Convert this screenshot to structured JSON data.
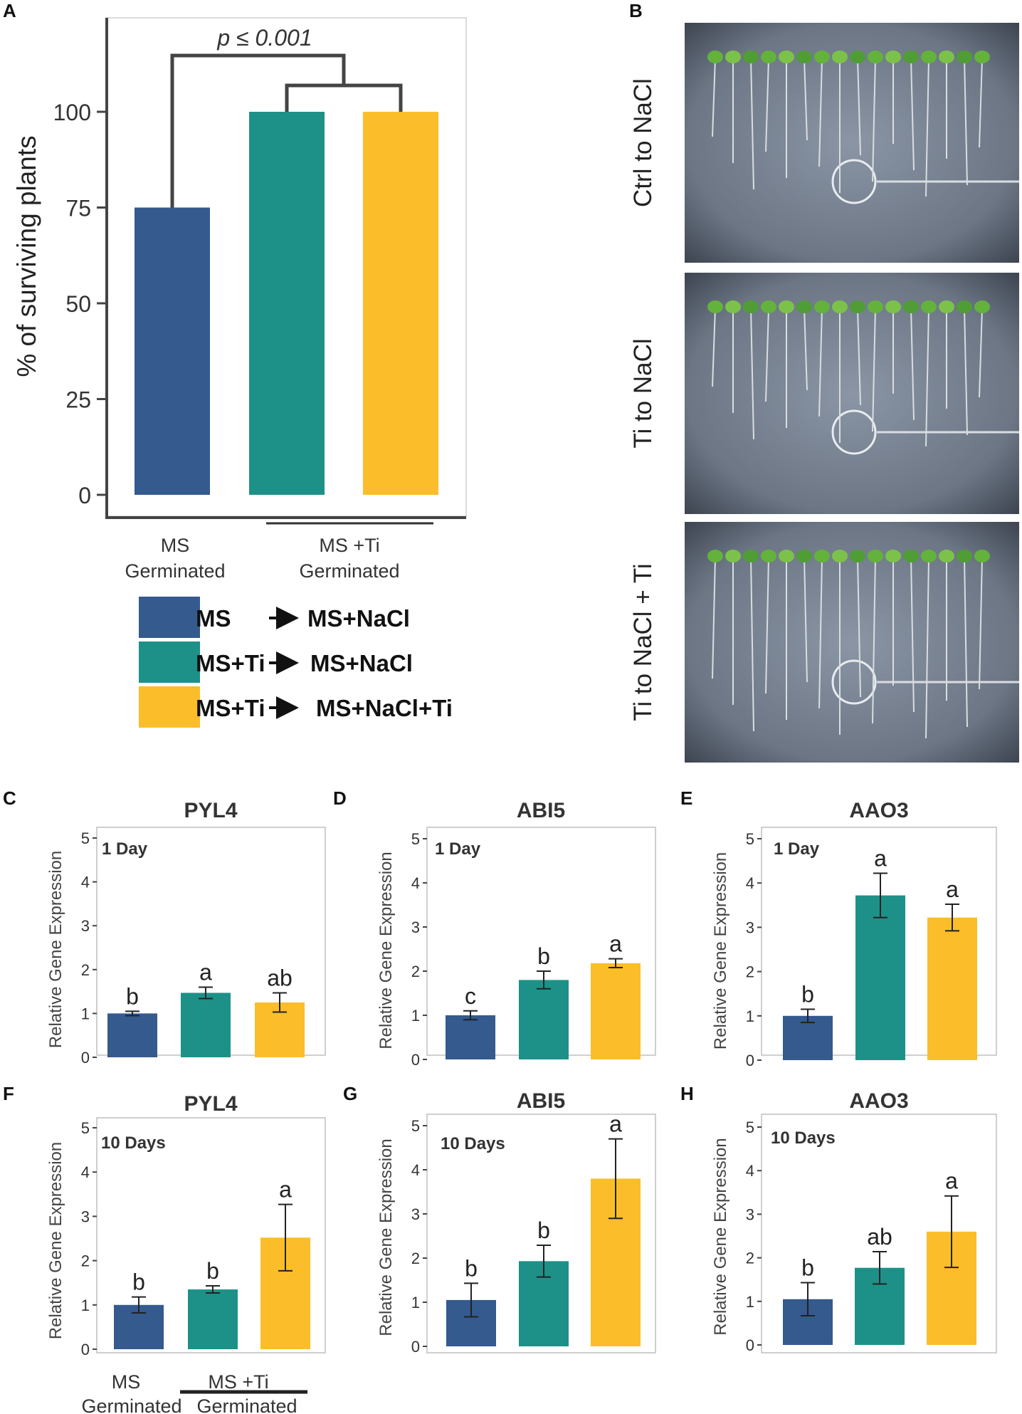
{
  "colors": {
    "ms": "#345a8e",
    "ti": "#1d9187",
    "tiNacl": "#fbbd2a"
  },
  "panelA": {
    "letter": "A",
    "chart_data": {
      "type": "bar",
      "categories": [
        "MS → MS+NaCl",
        "MS+Ti → MS+NaCl",
        "MS+Ti → MS+NaCl+Ti"
      ],
      "values": [
        75,
        100,
        100
      ],
      "ylabel": "% of surviving plants",
      "yticks": [
        0,
        25,
        50,
        75,
        100
      ],
      "ylim": [
        0,
        122
      ],
      "annotation": "p ≤ 0.001",
      "groups": [
        {
          "line1": "MS",
          "line2": "Germinated"
        },
        {
          "line1": "MS +Ti",
          "line2": "Germinated"
        }
      ]
    }
  },
  "legend": [
    {
      "from": "MS",
      "to": "MS+NaCl",
      "color": "#345a8e"
    },
    {
      "from": "MS+Ti",
      "to": "MS+NaCl",
      "color": "#1d9187"
    },
    {
      "from": "MS+Ti",
      "to": "MS+NaCl+Ti",
      "color": "#fbbd2a"
    }
  ],
  "panelB": {
    "letter": "B",
    "photos": [
      {
        "label": "Ctrl to NaCl"
      },
      {
        "label": "Ti to NaCl"
      },
      {
        "label": "Ti to NaCl + Ti"
      }
    ]
  },
  "subcharts": {
    "ylabel": "Relative Gene Expression",
    "yticks": [
      0,
      1,
      2,
      3,
      4,
      5
    ],
    "panels": [
      {
        "letter": "C",
        "chart_data": {
          "type": "bar",
          "title": "PYL4",
          "timepoint": "1 Day",
          "values": [
            1.0,
            1.47,
            1.25
          ],
          "errors": [
            0.05,
            0.13,
            0.22
          ],
          "letters": [
            "b",
            "a",
            "ab"
          ],
          "ylim": [
            0,
            5.2
          ]
        }
      },
      {
        "letter": "D",
        "chart_data": {
          "type": "bar",
          "title": "ABI5",
          "timepoint": "1 Day",
          "values": [
            1.0,
            1.8,
            2.18
          ],
          "errors": [
            0.1,
            0.2,
            0.1
          ],
          "letters": [
            "c",
            "b",
            "a"
          ],
          "ylim": [
            0,
            5.2
          ]
        }
      },
      {
        "letter": "E",
        "chart_data": {
          "type": "bar",
          "title": "AAO3",
          "timepoint": "1 Day",
          "values": [
            1.0,
            3.72,
            3.22
          ],
          "errors": [
            0.15,
            0.5,
            0.3
          ],
          "letters": [
            "b",
            "a",
            "a"
          ],
          "ylim": [
            0,
            5.2
          ]
        }
      },
      {
        "letter": "F",
        "chart_data": {
          "type": "bar",
          "title": "PYL4",
          "timepoint": "10 Days",
          "values": [
            1.0,
            1.35,
            2.52
          ],
          "errors": [
            0.18,
            0.08,
            0.75
          ],
          "letters": [
            "b",
            "b",
            "a"
          ],
          "ylim": [
            0,
            5.2
          ]
        }
      },
      {
        "letter": "G",
        "chart_data": {
          "type": "bar",
          "title": "ABI5",
          "timepoint": "10 Days",
          "values": [
            1.05,
            1.93,
            3.8
          ],
          "errors": [
            0.38,
            0.36,
            0.9
          ],
          "letters": [
            "b",
            "b",
            "a"
          ],
          "ylim": [
            0,
            5.2
          ]
        }
      },
      {
        "letter": "H",
        "chart_data": {
          "type": "bar",
          "title": "AAO3",
          "timepoint": "10 Days",
          "values": [
            1.05,
            1.77,
            2.6
          ],
          "errors": [
            0.38,
            0.37,
            0.82
          ],
          "letters": [
            "b",
            "ab",
            "a"
          ],
          "ylim": [
            0,
            5.2
          ]
        }
      }
    ],
    "groups": [
      {
        "line1": "MS",
        "line2": "Germinated"
      },
      {
        "line1": "MS +Ti",
        "line2": "Germinated"
      }
    ]
  }
}
